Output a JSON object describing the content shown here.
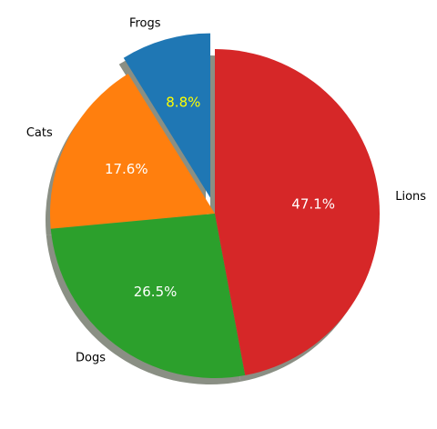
{
  "chart_data": {
    "type": "pie",
    "categories": [
      "Frogs",
      "Cats",
      "Dogs",
      "Lions"
    ],
    "values": [
      15,
      30,
      45,
      80
    ],
    "percent_labels": [
      "8.8%",
      "17.6%",
      "26.5%",
      "47.1%"
    ],
    "colors": [
      "#1f77b4",
      "#ff7f0e",
      "#2ca02c",
      "#d62728"
    ],
    "percent_label_colors": [
      "#ffff00",
      "#ffffff",
      "#ffffff",
      "#ffffff"
    ],
    "explode": [
      0.1,
      0,
      0,
      0
    ],
    "start_angle_deg": 90,
    "direction": "counterclockwise",
    "shadow": true,
    "title": "",
    "legend": "none"
  }
}
